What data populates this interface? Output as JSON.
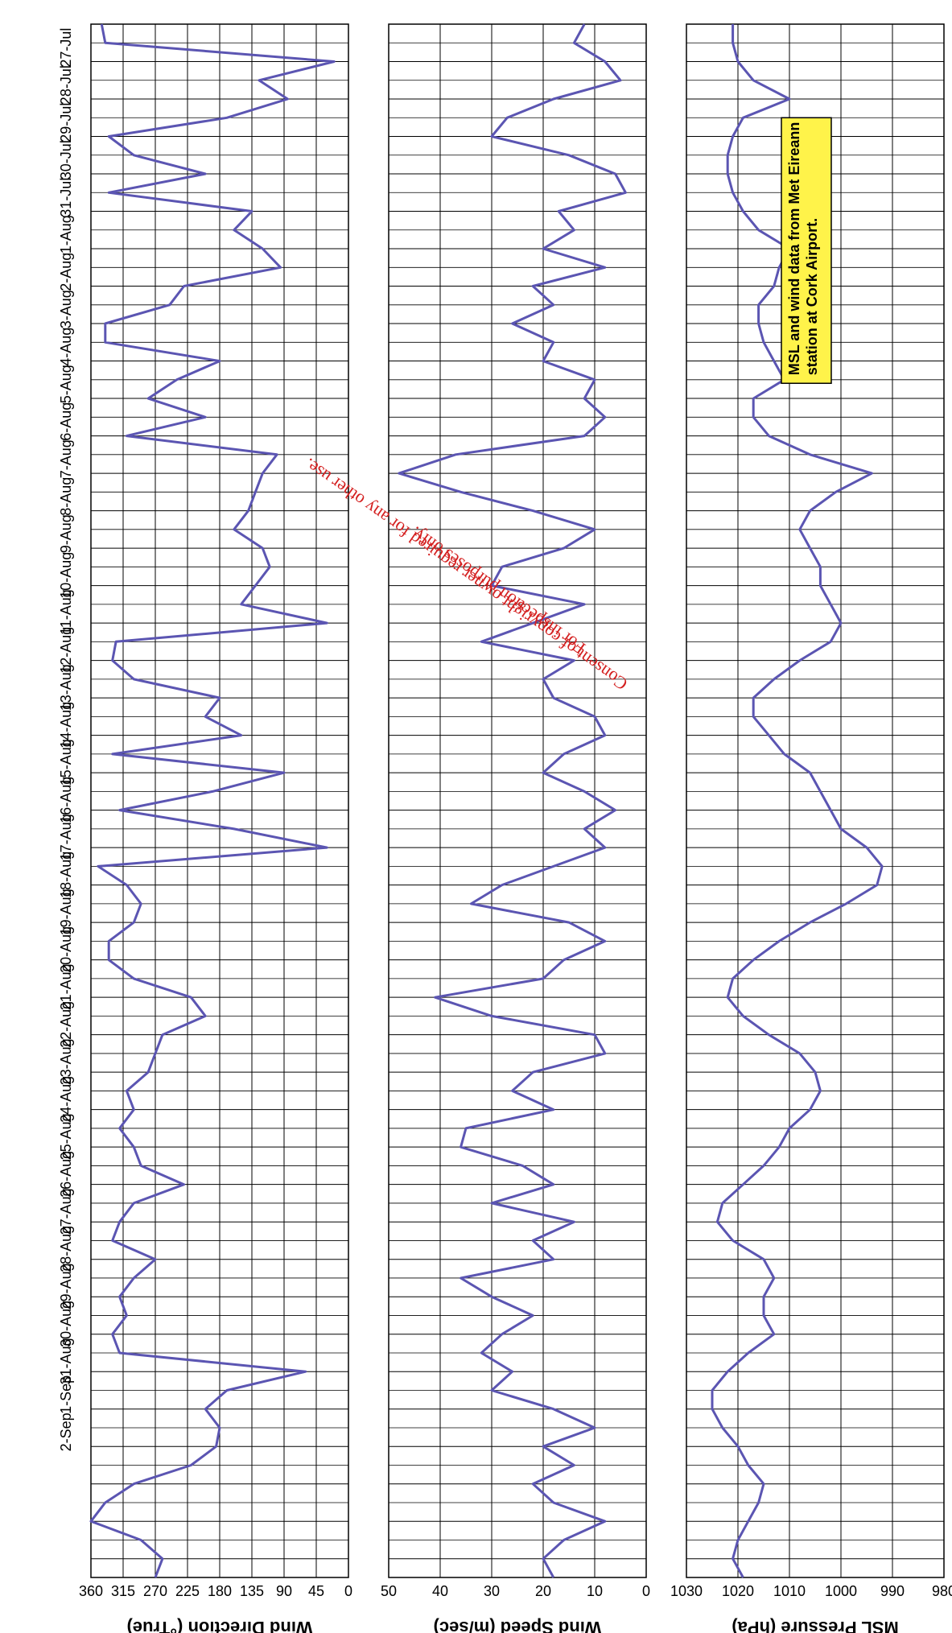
{
  "chart_data": [
    {
      "type": "line",
      "ylabel": "MSL Pressure (hPa)",
      "ylim": [
        980,
        1030
      ],
      "yticks": [
        980,
        990,
        1000,
        1010,
        1020,
        1030
      ],
      "grid": true,
      "x_dates": [
        "27-Jul",
        "28-Jul",
        "29-Jul",
        "30-Jul",
        "31-Jul",
        "1-Aug",
        "2-Aug",
        "3-Aug",
        "4-Aug",
        "5-Aug",
        "6-Aug",
        "7-Aug",
        "8-Aug",
        "9-Aug",
        "10-Aug",
        "11-Aug",
        "12-Aug",
        "13-Aug",
        "14-Aug",
        "15-Aug",
        "16-Aug",
        "17-Aug",
        "18-Aug",
        "19-Aug",
        "20-Aug",
        "21-Aug",
        "22-Aug",
        "23-Aug",
        "24-Aug",
        "25-Aug",
        "26-Aug",
        "27-Aug",
        "28-Aug",
        "29-Aug",
        "30-Aug",
        "31-Aug",
        "1-Sep",
        "2-Sep"
      ],
      "series": [
        {
          "color": "#5b55b2",
          "points": [
            [
              0,
              1021
            ],
            [
              0.5,
              1021
            ],
            [
              1.0,
              1020
            ],
            [
              1.5,
              1017
            ],
            [
              2.0,
              1010
            ],
            [
              2.5,
              1019
            ],
            [
              3.0,
              1021
            ],
            [
              3.5,
              1022
            ],
            [
              4.0,
              1022
            ],
            [
              4.5,
              1021
            ],
            [
              5.0,
              1019
            ],
            [
              5.5,
              1016
            ],
            [
              6.0,
              1010
            ],
            [
              6.5,
              1012
            ],
            [
              7.0,
              1013
            ],
            [
              7.5,
              1016
            ],
            [
              8.0,
              1016
            ],
            [
              8.5,
              1015
            ],
            [
              9.0,
              1013
            ],
            [
              9.5,
              1011
            ],
            [
              10.0,
              1017
            ],
            [
              10.5,
              1017
            ],
            [
              11.0,
              1014
            ],
            [
              11.5,
              1006
            ],
            [
              12.0,
              994
            ],
            [
              12.5,
              1001
            ],
            [
              13.0,
              1006
            ],
            [
              13.5,
              1008
            ],
            [
              14.0,
              1006
            ],
            [
              14.5,
              1004
            ],
            [
              15.0,
              1004
            ],
            [
              15.5,
              1002
            ],
            [
              16.0,
              1000
            ],
            [
              16.5,
              1002
            ],
            [
              17.0,
              1008
            ],
            [
              17.5,
              1013
            ],
            [
              18.0,
              1017
            ],
            [
              18.5,
              1017
            ],
            [
              19.0,
              1014
            ],
            [
              19.5,
              1011
            ],
            [
              20.0,
              1006
            ],
            [
              20.5,
              1004
            ],
            [
              21.0,
              1002
            ],
            [
              21.5,
              1000
            ],
            [
              22.0,
              995
            ],
            [
              22.5,
              992
            ],
            [
              23.0,
              993
            ],
            [
              23.5,
              999
            ],
            [
              24.0,
              1006
            ],
            [
              24.5,
              1012
            ],
            [
              25.0,
              1017
            ],
            [
              25.5,
              1021
            ],
            [
              26.0,
              1022
            ],
            [
              26.5,
              1019
            ],
            [
              27.0,
              1014
            ],
            [
              27.5,
              1008
            ],
            [
              28.0,
              1005
            ],
            [
              28.5,
              1004
            ],
            [
              29.0,
              1006
            ],
            [
              29.5,
              1010
            ],
            [
              30.0,
              1012
            ],
            [
              30.5,
              1015
            ],
            [
              31.0,
              1019
            ],
            [
              31.5,
              1023
            ],
            [
              32.0,
              1024
            ],
            [
              32.5,
              1021
            ],
            [
              33.0,
              1015
            ],
            [
              33.5,
              1013
            ],
            [
              34.0,
              1015
            ],
            [
              34.5,
              1015
            ],
            [
              35.0,
              1013
            ],
            [
              35.5,
              1018
            ],
            [
              36.0,
              1022
            ],
            [
              36.5,
              1025
            ],
            [
              37.0,
              1025
            ],
            [
              37.5,
              1023
            ],
            [
              38.0,
              1020
            ],
            [
              38.5,
              1018
            ],
            [
              39.0,
              1015
            ],
            [
              39.5,
              1016
            ],
            [
              40.0,
              1018
            ],
            [
              40.5,
              1020
            ],
            [
              41.0,
              1021
            ],
            [
              41.5,
              1019
            ]
          ]
        }
      ]
    },
    {
      "type": "line",
      "ylabel": "Wind Speed (m/sec)",
      "ylim": [
        0,
        50
      ],
      "yticks": [
        0,
        10,
        20,
        30,
        40,
        50
      ],
      "grid": true,
      "series": [
        {
          "color": "#5b55b2",
          "points": [
            [
              0,
              12
            ],
            [
              0.5,
              14
            ],
            [
              1.0,
              8
            ],
            [
              1.5,
              5
            ],
            [
              2.0,
              18
            ],
            [
              2.5,
              27
            ],
            [
              3.0,
              30
            ],
            [
              3.5,
              15
            ],
            [
              4.0,
              6
            ],
            [
              4.5,
              4
            ],
            [
              5.0,
              17
            ],
            [
              5.5,
              14
            ],
            [
              6.0,
              20
            ],
            [
              6.5,
              8
            ],
            [
              7.0,
              22
            ],
            [
              7.5,
              18
            ],
            [
              8.0,
              26
            ],
            [
              8.5,
              18
            ],
            [
              9.0,
              20
            ],
            [
              9.5,
              10
            ],
            [
              10.0,
              12
            ],
            [
              10.5,
              8
            ],
            [
              11.0,
              12
            ],
            [
              11.5,
              37
            ],
            [
              12.0,
              48
            ],
            [
              12.5,
              36
            ],
            [
              13.0,
              22
            ],
            [
              13.5,
              10
            ],
            [
              14.0,
              16
            ],
            [
              14.5,
              28
            ],
            [
              15.0,
              30
            ],
            [
              15.5,
              12
            ],
            [
              16.0,
              22
            ],
            [
              16.5,
              32
            ],
            [
              17.0,
              14
            ],
            [
              17.5,
              20
            ],
            [
              18.0,
              18
            ],
            [
              18.5,
              10
            ],
            [
              19.0,
              8
            ],
            [
              19.5,
              16
            ],
            [
              20.0,
              20
            ],
            [
              20.5,
              12
            ],
            [
              21.0,
              6
            ],
            [
              21.5,
              12
            ],
            [
              22.0,
              8
            ],
            [
              22.5,
              18
            ],
            [
              23.0,
              28
            ],
            [
              23.5,
              34
            ],
            [
              24.0,
              15
            ],
            [
              24.5,
              8
            ],
            [
              25.0,
              16
            ],
            [
              25.5,
              20
            ],
            [
              26.0,
              41
            ],
            [
              26.5,
              30
            ],
            [
              27.0,
              10
            ],
            [
              27.5,
              8
            ],
            [
              28.0,
              22
            ],
            [
              28.5,
              26
            ],
            [
              29.0,
              18
            ],
            [
              29.5,
              35
            ],
            [
              30.0,
              36
            ],
            [
              30.5,
              24
            ],
            [
              31.0,
              18
            ],
            [
              31.5,
              30
            ],
            [
              32.0,
              14
            ],
            [
              32.5,
              22
            ],
            [
              33.0,
              18
            ],
            [
              33.5,
              36
            ],
            [
              34.0,
              30
            ],
            [
              34.5,
              22
            ],
            [
              35.0,
              28
            ],
            [
              35.5,
              32
            ],
            [
              36.0,
              26
            ],
            [
              36.5,
              30
            ],
            [
              37.0,
              18
            ],
            [
              37.5,
              10
            ],
            [
              38.0,
              20
            ],
            [
              38.5,
              14
            ],
            [
              39.0,
              22
            ],
            [
              39.5,
              18
            ],
            [
              40.0,
              8
            ],
            [
              40.5,
              16
            ],
            [
              41.0,
              20
            ],
            [
              41.5,
              18
            ]
          ]
        }
      ]
    },
    {
      "type": "line",
      "ylabel": "Wind Direction (°True)",
      "ylim": [
        0,
        360
      ],
      "yticks": [
        0,
        45,
        90,
        135,
        180,
        225,
        270,
        315,
        360
      ],
      "grid": true,
      "series": [
        {
          "color": "#5b55b2",
          "points": [
            [
              0,
              345
            ],
            [
              0.5,
              340
            ],
            [
              1.0,
              20
            ],
            [
              1.5,
              125
            ],
            [
              2.0,
              85
            ],
            [
              2.5,
              170
            ],
            [
              3.0,
              335
            ],
            [
              3.5,
              300
            ],
            [
              4.0,
              200
            ],
            [
              4.5,
              335
            ],
            [
              5.0,
              135
            ],
            [
              5.5,
              160
            ],
            [
              6.0,
              120
            ],
            [
              6.5,
              95
            ],
            [
              7.0,
              230
            ],
            [
              7.5,
              250
            ],
            [
              8.0,
              340
            ],
            [
              8.5,
              340
            ],
            [
              9.0,
              180
            ],
            [
              9.5,
              240
            ],
            [
              10.0,
              280
            ],
            [
              10.5,
              200
            ],
            [
              11.0,
              310
            ],
            [
              11.5,
              100
            ],
            [
              12.0,
              120
            ],
            [
              12.5,
              130
            ],
            [
              13.0,
              140
            ],
            [
              13.5,
              160
            ],
            [
              14.0,
              120
            ],
            [
              14.5,
              110
            ],
            [
              15.0,
              130
            ],
            [
              15.5,
              150
            ],
            [
              16.0,
              30
            ],
            [
              16.5,
              325
            ],
            [
              17.0,
              330
            ],
            [
              17.5,
              300
            ],
            [
              18.0,
              180
            ],
            [
              18.5,
              200
            ],
            [
              19.0,
              150
            ],
            [
              19.5,
              330
            ],
            [
              20.0,
              90
            ],
            [
              20.5,
              190
            ],
            [
              21.0,
              320
            ],
            [
              21.5,
              160
            ],
            [
              22.0,
              30
            ],
            [
              22.5,
              350
            ],
            [
              23.0,
              310
            ],
            [
              23.5,
              290
            ],
            [
              24.0,
              300
            ],
            [
              24.5,
              335
            ],
            [
              25.0,
              335
            ],
            [
              25.5,
              300
            ],
            [
              26.0,
              220
            ],
            [
              26.5,
              200
            ],
            [
              27.0,
              260
            ],
            [
              27.5,
              270
            ],
            [
              28.0,
              280
            ],
            [
              28.5,
              310
            ],
            [
              29.0,
              300
            ],
            [
              29.5,
              320
            ],
            [
              30.0,
              300
            ],
            [
              30.5,
              290
            ],
            [
              31.0,
              230
            ],
            [
              31.5,
              300
            ],
            [
              32.0,
              320
            ],
            [
              32.5,
              330
            ],
            [
              33.0,
              270
            ],
            [
              33.5,
              300
            ],
            [
              34.0,
              320
            ],
            [
              34.5,
              310
            ],
            [
              35.0,
              330
            ],
            [
              35.5,
              320
            ],
            [
              36.0,
              60
            ],
            [
              36.5,
              170
            ],
            [
              37.0,
              200
            ],
            [
              37.5,
              180
            ],
            [
              38.0,
              185
            ],
            [
              38.5,
              220
            ],
            [
              39.0,
              300
            ],
            [
              39.5,
              340
            ],
            [
              40.0,
              360
            ],
            [
              40.5,
              290
            ],
            [
              41.0,
              260
            ],
            [
              41.5,
              270
            ]
          ]
        }
      ]
    }
  ],
  "note": {
    "line1": "MSL and wind data from Met Eireann",
    "line2": "station at Cork Airport."
  },
  "watermark": {
    "line1": "For inspection purposes only.",
    "line2": "Consent of copyright owner required for any other use."
  }
}
